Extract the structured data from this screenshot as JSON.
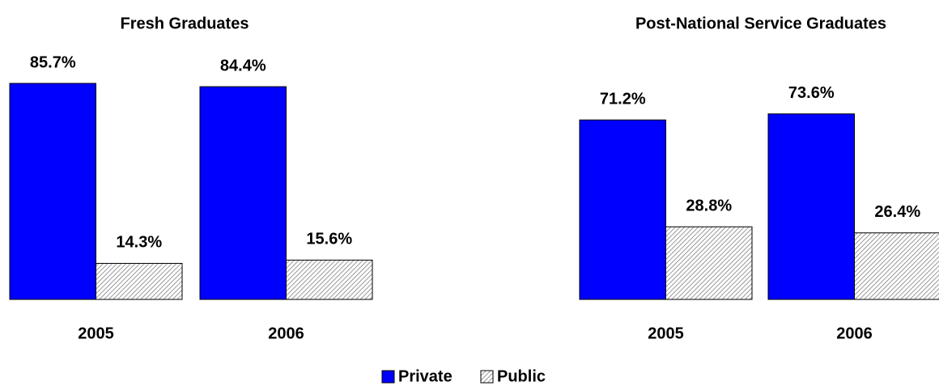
{
  "chart_data": [
    {
      "type": "bar",
      "title": "Fresh Graduates",
      "categories": [
        "2005",
        "2006"
      ],
      "series": [
        {
          "name": "Private",
          "color": "#0000ff",
          "values": [
            85.7,
            84.4
          ],
          "value_labels": [
            "85.7%",
            "84.4%"
          ]
        },
        {
          "name": "Public",
          "color": "#808080",
          "values": [
            14.3,
            15.6
          ],
          "value_labels": [
            "14.3%",
            "15.6%"
          ]
        }
      ]
    },
    {
      "type": "bar",
      "title": "Post-National Service Graduates",
      "categories": [
        "2005",
        "2006"
      ],
      "series": [
        {
          "name": "Private",
          "color": "#0000ff",
          "values": [
            71.2,
            73.6
          ],
          "value_labels": [
            "71.2%",
            "73.6%"
          ]
        },
        {
          "name": "Public",
          "color": "#808080",
          "values": [
            28.8,
            26.4
          ],
          "value_labels": [
            "28.8%",
            "26.4%"
          ]
        }
      ]
    }
  ]
}
